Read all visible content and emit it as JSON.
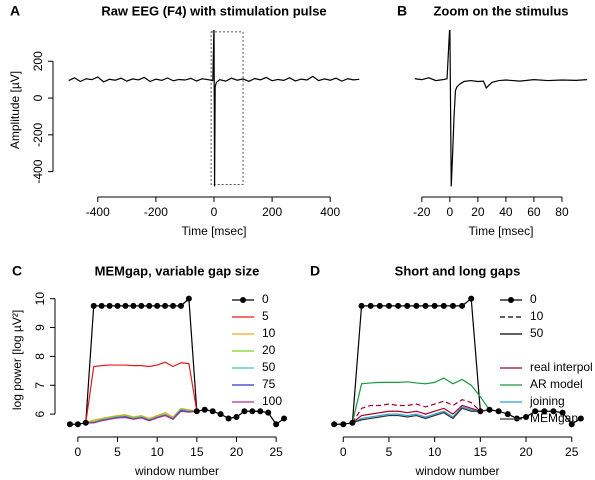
{
  "chart_data": [
    {
      "type": "line",
      "panel": "A",
      "title": "Raw EEG (F4) with stimulation pulse",
      "xlabel": "Time [msec]",
      "ylabel": "Amplitude [µV]",
      "x": [
        -500,
        -480,
        -460,
        -440,
        -420,
        -400,
        -380,
        -360,
        -340,
        -320,
        -300,
        -280,
        -260,
        -240,
        -220,
        -200,
        -180,
        -160,
        -140,
        -120,
        -100,
        -80,
        -60,
        -40,
        -20,
        -4,
        0,
        2,
        4,
        8,
        20,
        40,
        60,
        80,
        100,
        120,
        140,
        160,
        180,
        200,
        220,
        240,
        260,
        280,
        300,
        320,
        340,
        360,
        380,
        400,
        420,
        440,
        460,
        480,
        500
      ],
      "series": [
        {
          "color": "#000000",
          "values": [
            95,
            110,
            90,
            105,
            100,
            115,
            88,
            102,
            97,
            108,
            92,
            104,
            99,
            112,
            90,
            103,
            96,
            109,
            94,
            101,
            98,
            107,
            93,
            105,
            100,
            95,
            400,
            -480,
            60,
            85,
            100,
            92,
            108,
            97,
            104,
            91,
            106,
            99,
            112,
            94,
            101,
            96,
            110,
            93,
            103,
            98,
            118,
            95,
            104,
            97,
            108,
            92,
            105,
            99,
            102
          ]
        }
      ],
      "zoom_box": {
        "x": [
          -10,
          100
        ],
        "y": [
          -470,
          360
        ]
      },
      "xlim": [
        -530,
        530
      ],
      "xticks": [
        -400,
        -200,
        0,
        200,
        400
      ],
      "ylim": [
        -500,
        370
      ],
      "yticks": [
        -400,
        -200,
        0,
        200
      ]
    },
    {
      "type": "line",
      "panel": "B",
      "title": "Zoom on the stimulus",
      "xlabel": "Time [msec]",
      "x": [
        -25,
        -20,
        -15,
        -10,
        -5,
        -2,
        0,
        1,
        2,
        3,
        4,
        5,
        7,
        10,
        15,
        20,
        24,
        26,
        30,
        35,
        40,
        50,
        60,
        70,
        80,
        90,
        98
      ],
      "series": [
        {
          "color": "#000000",
          "values": [
            105,
            100,
            110,
            95,
            100,
            105,
            400,
            -480,
            -300,
            -100,
            40,
            60,
            75,
            90,
            95,
            90,
            92,
            55,
            85,
            95,
            98,
            92,
            100,
            95,
            98,
            96,
            100
          ]
        }
      ],
      "xlim": [
        -27,
        100
      ],
      "xticks": [
        -20,
        0,
        20,
        40,
        60,
        80
      ],
      "ylim": [
        -500,
        370
      ],
      "yticks": []
    },
    {
      "type": "line",
      "panel": "C",
      "title": "MEMgap, variable gap size",
      "xlabel": "window number",
      "ylabel": "log power [log µV²]",
      "x": [
        -1,
        0,
        1,
        2,
        3,
        4,
        5,
        6,
        7,
        8,
        9,
        10,
        11,
        12,
        13,
        14,
        15,
        16,
        17,
        18,
        19,
        20,
        21,
        22,
        23,
        24,
        25,
        26
      ],
      "series": [
        {
          "name": "0",
          "color": "#000000",
          "marker": "circle",
          "values": [
            5.65,
            5.65,
            5.7,
            9.75,
            9.75,
            9.75,
            9.75,
            9.75,
            9.75,
            9.75,
            9.75,
            9.75,
            9.75,
            9.75,
            9.75,
            10.0,
            6.1,
            6.15,
            6.1,
            6.0,
            5.85,
            5.9,
            6.1,
            6.1,
            6.1,
            6.05,
            5.65,
            5.85
          ]
        },
        {
          "name": "5",
          "color": "#e41a1c",
          "values": [
            null,
            null,
            5.7,
            7.65,
            7.68,
            7.7,
            7.7,
            7.7,
            7.68,
            7.68,
            7.65,
            7.7,
            7.8,
            7.65,
            7.78,
            7.75,
            6.1,
            null,
            null,
            null,
            null,
            null,
            null,
            null,
            null,
            null,
            null,
            null
          ]
        },
        {
          "name": "10",
          "color": "#f5a623",
          "values": [
            null,
            null,
            5.7,
            5.8,
            5.85,
            5.9,
            5.95,
            5.98,
            5.9,
            5.95,
            5.85,
            5.95,
            6.05,
            5.9,
            6.2,
            6.15,
            6.1,
            null,
            null,
            null,
            null,
            null,
            null,
            null,
            null,
            null,
            null,
            null
          ]
        },
        {
          "name": "20",
          "color": "#7ed321",
          "values": [
            null,
            null,
            5.7,
            5.75,
            5.82,
            5.88,
            5.93,
            5.95,
            5.88,
            5.92,
            5.82,
            5.92,
            6.0,
            5.87,
            6.18,
            6.12,
            6.1,
            null,
            null,
            null,
            null,
            null,
            null,
            null,
            null,
            null,
            null,
            null
          ]
        },
        {
          "name": "50",
          "color": "#40c0c0",
          "values": [
            null,
            null,
            5.7,
            5.72,
            5.8,
            5.85,
            5.9,
            5.92,
            5.85,
            5.9,
            5.8,
            5.9,
            5.98,
            5.85,
            6.15,
            6.1,
            6.1,
            null,
            null,
            null,
            null,
            null,
            null,
            null,
            null,
            null,
            null,
            null
          ]
        },
        {
          "name": "75",
          "color": "#3333cc",
          "values": [
            null,
            null,
            5.7,
            5.7,
            5.78,
            5.83,
            5.88,
            5.9,
            5.83,
            5.88,
            5.78,
            5.88,
            5.96,
            5.83,
            6.12,
            6.08,
            6.1,
            null,
            null,
            null,
            null,
            null,
            null,
            null,
            null,
            null,
            null,
            null
          ]
        },
        {
          "name": "100",
          "color": "#b03090",
          "values": [
            null,
            null,
            5.7,
            5.7,
            5.77,
            5.82,
            5.87,
            5.88,
            5.82,
            5.87,
            5.77,
            5.87,
            5.95,
            5.82,
            6.1,
            6.07,
            6.1,
            null,
            null,
            null,
            null,
            null,
            null,
            null,
            null,
            null,
            null,
            null
          ]
        }
      ],
      "xlim": [
        -2,
        27
      ],
      "xticks": [
        0,
        5,
        10,
        15,
        20,
        25
      ],
      "ylim": [
        5.45,
        10.3
      ],
      "yticks": [
        6,
        7,
        8,
        9,
        10
      ]
    },
    {
      "type": "line",
      "panel": "D",
      "title": "Short and long gaps",
      "xlabel": "window number",
      "x": [
        -1,
        0,
        1,
        2,
        3,
        4,
        5,
        6,
        7,
        8,
        9,
        10,
        11,
        12,
        13,
        14,
        15,
        16,
        17,
        18,
        19,
        20,
        21,
        22,
        23,
        24,
        25,
        26
      ],
      "gap_legend": [
        {
          "name": "10",
          "dash": true
        },
        {
          "name": "50",
          "dash": false
        }
      ],
      "series": [
        {
          "name": "0",
          "color": "#000000",
          "marker": "circle",
          "values": [
            5.65,
            5.65,
            5.7,
            9.75,
            9.75,
            9.75,
            9.75,
            9.75,
            9.75,
            9.75,
            9.75,
            9.75,
            9.75,
            9.75,
            9.75,
            10.0,
            6.1,
            6.15,
            6.1,
            6.0,
            5.85,
            5.9,
            6.1,
            6.1,
            6.1,
            6.05,
            5.65,
            5.85
          ]
        },
        {
          "name": "real interpol",
          "color": "#a50026",
          "values": [
            null,
            null,
            5.7,
            5.95,
            6.0,
            6.05,
            6.1,
            6.1,
            6.05,
            6.1,
            6.0,
            6.1,
            6.2,
            6.0,
            6.3,
            6.2,
            6.1,
            6.15,
            null,
            null,
            null,
            null,
            null,
            null,
            null,
            null,
            null,
            null
          ]
        },
        {
          "name": "AR model",
          "color": "#1a9641",
          "values": [
            null,
            null,
            5.7,
            7.05,
            7.08,
            7.1,
            7.1,
            7.1,
            7.12,
            7.08,
            7.05,
            7.1,
            7.25,
            7.05,
            7.2,
            7.0,
            6.6,
            6.15,
            null,
            null,
            null,
            null,
            null,
            null,
            null,
            null,
            null,
            null
          ]
        },
        {
          "name": "joining",
          "color": "#2b9fd9",
          "values": [
            null,
            null,
            5.7,
            5.85,
            5.9,
            5.95,
            6.0,
            6.0,
            5.95,
            6.0,
            5.9,
            6.0,
            6.1,
            5.9,
            6.25,
            6.15,
            6.1,
            6.15,
            null,
            null,
            null,
            null,
            null,
            null,
            null,
            null,
            null,
            null
          ]
        },
        {
          "name": "MEMgap",
          "color": "#333333",
          "values": [
            null,
            null,
            5.7,
            5.8,
            5.85,
            5.9,
            5.95,
            5.95,
            5.9,
            5.95,
            5.85,
            5.95,
            6.05,
            5.85,
            6.2,
            6.1,
            6.1,
            6.15,
            null,
            null,
            null,
            null,
            null,
            null,
            null,
            null,
            null,
            null
          ]
        },
        {
          "color": "#a50026",
          "dash": true,
          "values": [
            null,
            null,
            5.7,
            6.2,
            6.3,
            6.3,
            6.35,
            6.3,
            6.3,
            6.35,
            6.25,
            6.35,
            6.45,
            6.3,
            6.5,
            6.4,
            6.1,
            6.15,
            null,
            null,
            null,
            null,
            null,
            null,
            null,
            null,
            null,
            null
          ]
        }
      ],
      "xlim": [
        -2,
        27
      ],
      "xticks": [
        0,
        5,
        10,
        15,
        20,
        25
      ],
      "ylim": [
        5.45,
        10.3
      ],
      "yticks": []
    }
  ]
}
